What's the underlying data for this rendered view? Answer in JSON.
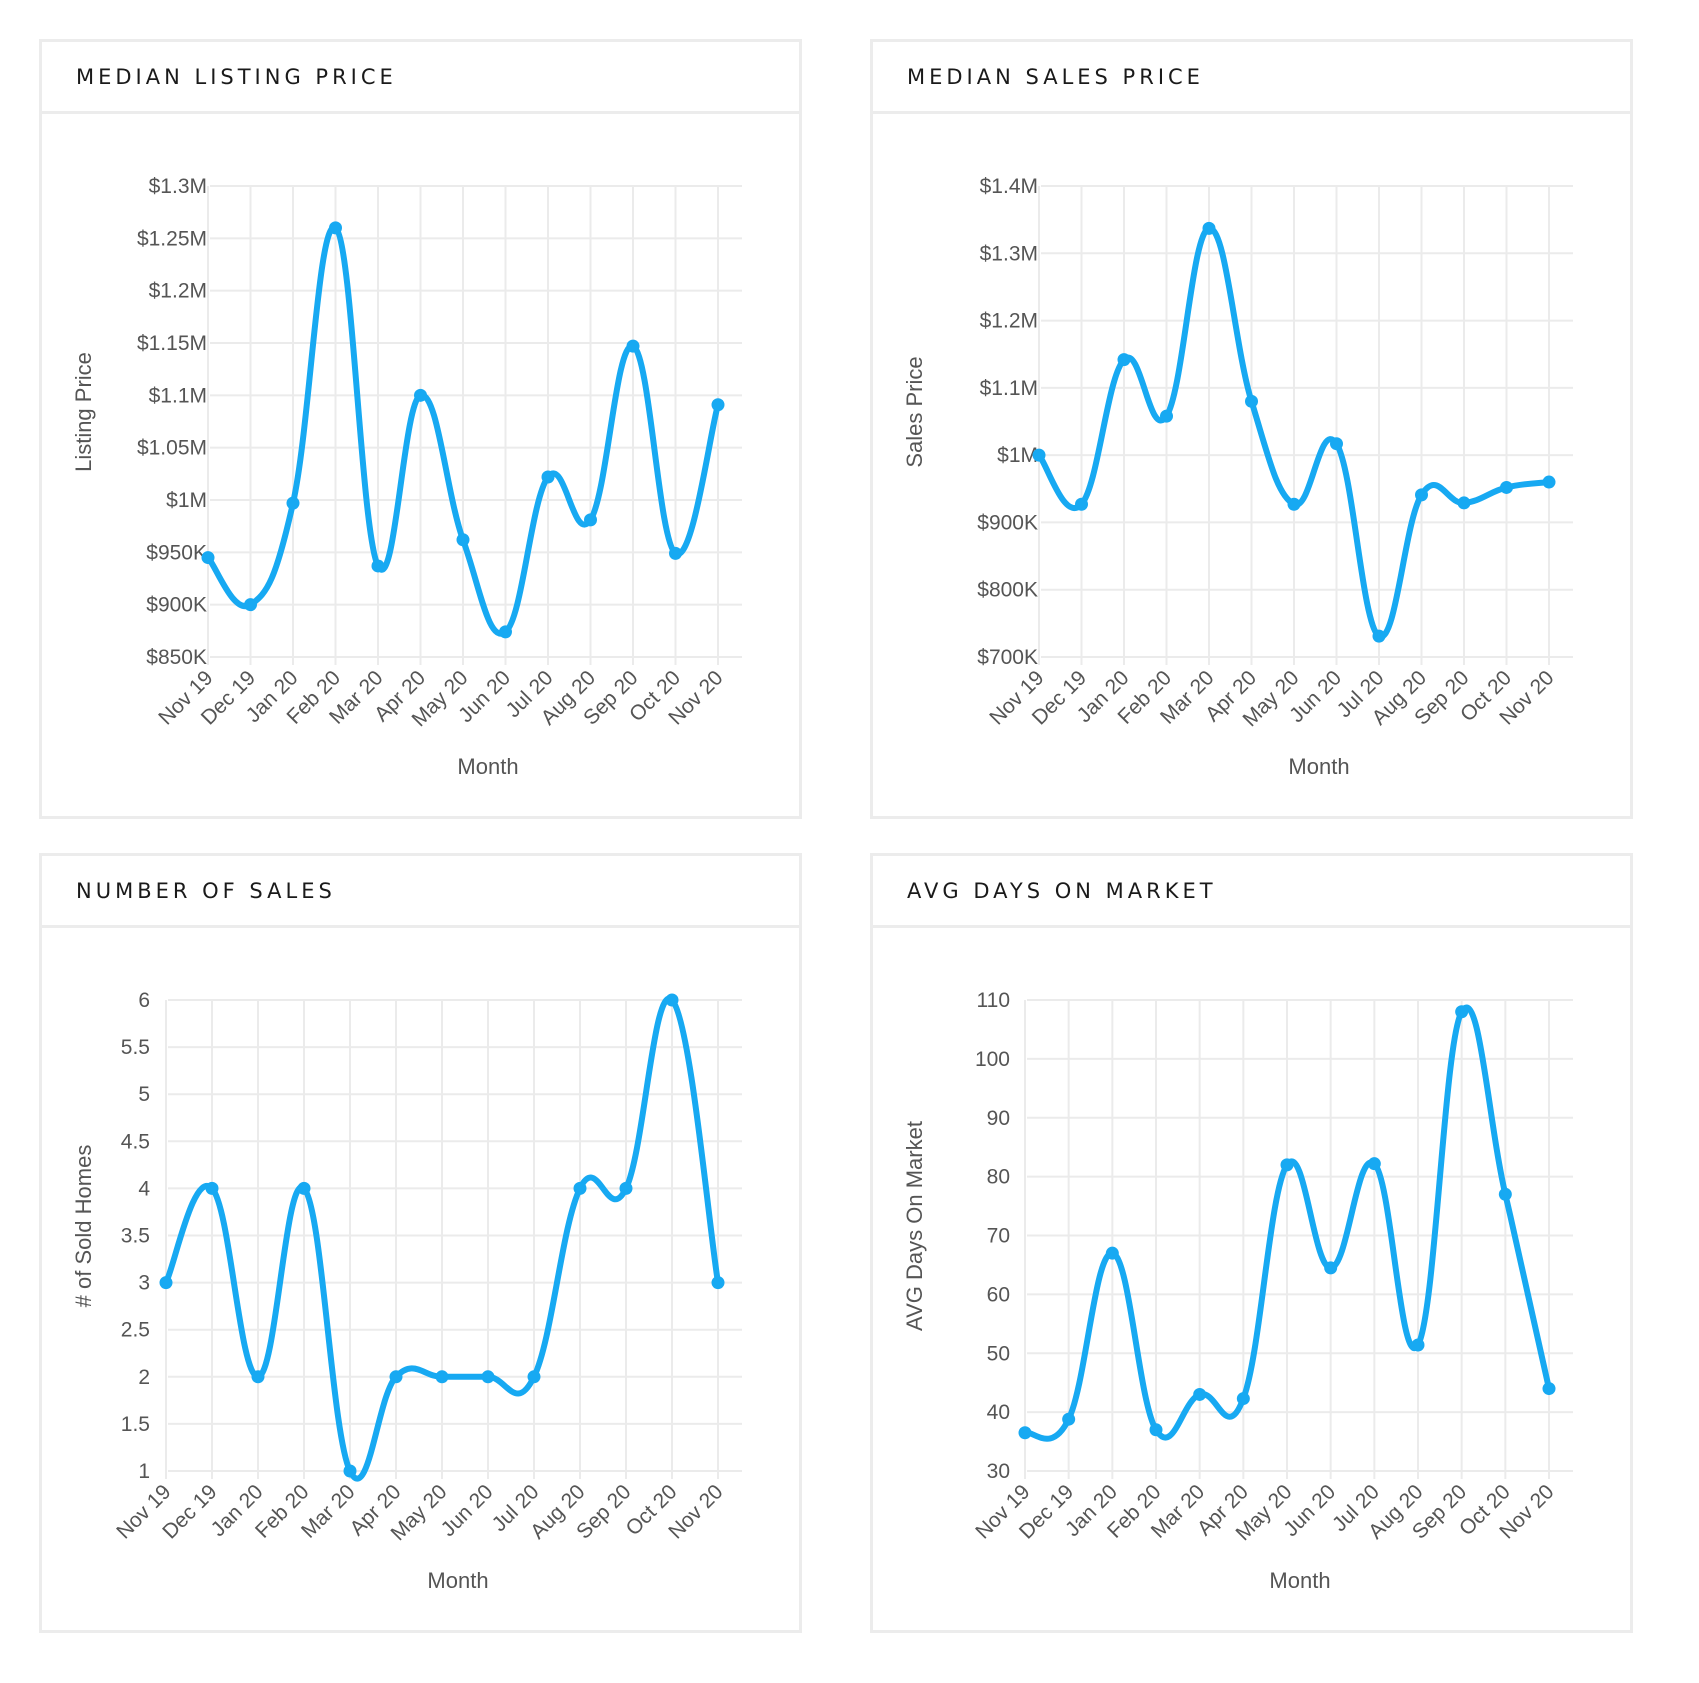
{
  "colors": {
    "line": "#17a9f2",
    "grid": "#ebebeb",
    "border": "#ececec",
    "text": "#555555",
    "title": "#1a1a1a"
  },
  "chart_data": [
    {
      "type": "line",
      "title": "MEDIAN LISTING PRICE",
      "xlabel": "Month",
      "ylabel": "Listing Price",
      "categories": [
        "Nov 19",
        "Dec 19",
        "Jan 20",
        "Feb 20",
        "Mar 20",
        "Apr 20",
        "May 20",
        "Jun 20",
        "Jul 20",
        "Aug 20",
        "Sep 20",
        "Oct 20",
        "Nov 20"
      ],
      "values": [
        945000,
        900000,
        997000,
        1260000,
        937000,
        1100000,
        962000,
        874000,
        1022000,
        981000,
        1147000,
        949000,
        1091000
      ],
      "yticks": [
        850000,
        900000,
        950000,
        1000000,
        1050000,
        1100000,
        1150000,
        1200000,
        1250000,
        1300000
      ],
      "ytick_labels": [
        "$850K",
        "$900K",
        "$950K",
        "$1M",
        "$1.05M",
        "$1.1M",
        "$1.15M",
        "$1.2M",
        "$1.25M",
        "$1.3M"
      ],
      "ylim": [
        850000,
        1300000
      ],
      "grid": true,
      "curve": "smooth"
    },
    {
      "type": "line",
      "title": "MEDIAN SALES PRICE",
      "xlabel": "Month",
      "ylabel": "Sales Price",
      "categories": [
        "Nov 19",
        "Dec 19",
        "Jan 20",
        "Feb 20",
        "Mar 20",
        "Apr 20",
        "May 20",
        "Jun 20",
        "Jul 20",
        "Aug 20",
        "Sep 20",
        "Oct 20",
        "Nov 20"
      ],
      "values": [
        1000000,
        927000,
        1142000,
        1058000,
        1337000,
        1080000,
        927000,
        1017000,
        731000,
        941000,
        929000,
        952000,
        960000
      ],
      "yticks": [
        700000,
        800000,
        900000,
        1000000,
        1100000,
        1200000,
        1300000,
        1400000
      ],
      "ytick_labels": [
        "$700K",
        "$800K",
        "$900K",
        "$1M",
        "$1.1M",
        "$1.2M",
        "$1.3M",
        "$1.4M"
      ],
      "ylim": [
        700000,
        1400000
      ],
      "grid": true,
      "curve": "smooth"
    },
    {
      "type": "line",
      "title": "NUMBER OF SALES",
      "xlabel": "Month",
      "ylabel": "# of Sold Homes",
      "categories": [
        "Nov 19",
        "Dec 19",
        "Jan 20",
        "Feb 20",
        "Mar 20",
        "Apr 20",
        "May 20",
        "Jun 20",
        "Jul 20",
        "Aug 20",
        "Sep 20",
        "Oct 20",
        "Nov 20"
      ],
      "values": [
        3,
        4,
        2,
        4,
        1,
        2,
        2,
        2,
        2,
        4,
        4,
        6,
        3
      ],
      "yticks": [
        1,
        1.5,
        2,
        2.5,
        3,
        3.5,
        4,
        4.5,
        5,
        5.5,
        6
      ],
      "ytick_labels": [
        "1",
        "1.5",
        "2",
        "2.5",
        "3",
        "3.5",
        "4",
        "4.5",
        "5",
        "5.5",
        "6"
      ],
      "ylim": [
        1,
        6
      ],
      "grid": true,
      "curve": "smooth"
    },
    {
      "type": "line",
      "title": "AVG DAYS ON MARKET",
      "xlabel": "Month",
      "ylabel": "AVG Days On Market",
      "categories": [
        "Nov 19",
        "Dec 19",
        "Jan 20",
        "Feb 20",
        "Mar 20",
        "Apr 20",
        "May 20",
        "Jun 20",
        "Jul 20",
        "Aug 20",
        "Sep 20",
        "Oct 20",
        "Nov 20"
      ],
      "values": [
        36.5,
        38.8,
        67,
        37,
        43,
        42.3,
        82,
        64.5,
        82.2,
        51.4,
        108,
        77,
        44
      ],
      "yticks": [
        30,
        40,
        50,
        60,
        70,
        80,
        90,
        100,
        110
      ],
      "ytick_labels": [
        "30",
        "40",
        "50",
        "60",
        "70",
        "80",
        "90",
        "100",
        "110"
      ],
      "ylim": [
        30,
        110
      ],
      "grid": true,
      "curve": "smooth"
    }
  ]
}
